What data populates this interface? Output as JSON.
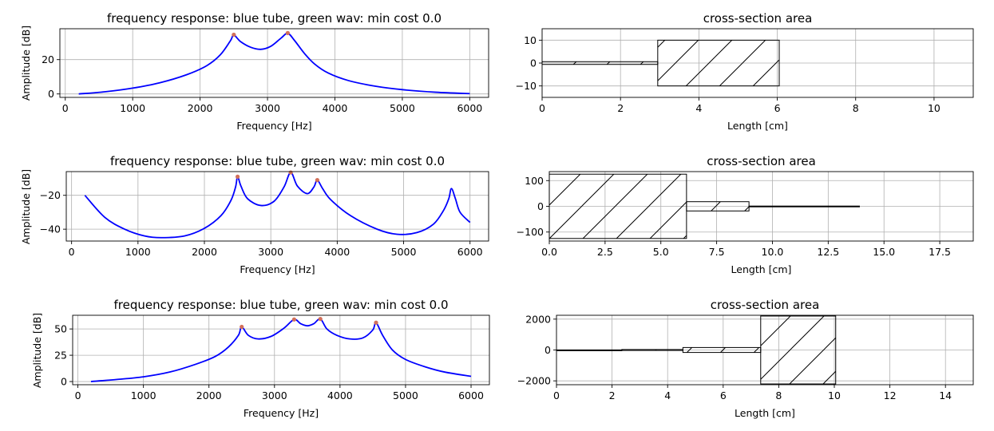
{
  "colors": {
    "curve": "#0000ff",
    "peak": "#d2705a",
    "grid": "#b0b0b0",
    "hatch": "#000000"
  },
  "chart_data": [
    {
      "type": "line",
      "title": "frequency response: blue tube, green wav: min cost 0.0",
      "xlabel": "Frequency [Hz]",
      "ylabel": "Amplitude [dB]",
      "xlim": [
        -80,
        6280
      ],
      "ylim": [
        -2,
        38
      ],
      "xticks": [
        0,
        1000,
        2000,
        3000,
        4000,
        5000,
        6000
      ],
      "yticks": [
        0,
        20
      ],
      "grid": true,
      "x": [
        200,
        600,
        1000,
        1400,
        1800,
        2100,
        2300,
        2450,
        2500,
        2600,
        2750,
        2900,
        3050,
        3200,
        3300,
        3400,
        3550,
        3700,
        3900,
        4200,
        4600,
        5000,
        5500,
        6000
      ],
      "y": [
        0,
        1.3,
        3.4,
        6.5,
        11.2,
        16.5,
        22.8,
        31,
        34.3,
        30.5,
        27.2,
        26,
        27.8,
        32.5,
        35.3,
        31.2,
        23.5,
        17.4,
        12.2,
        7.8,
        4.5,
        2.5,
        1,
        0.2
      ],
      "peaks": [
        {
          "x": 2500,
          "y": 34.5
        },
        {
          "x": 3300,
          "y": 35.5
        }
      ]
    },
    {
      "type": "area",
      "title": "cross-section area",
      "xlabel": "Length [cm]",
      "ylabel": "",
      "xlim": [
        0,
        11
      ],
      "ylim": [
        -15,
        15
      ],
      "xticks": [
        0,
        2,
        4,
        6,
        8,
        10
      ],
      "yticks": [
        -10,
        0,
        10
      ],
      "grid": true,
      "segments": [
        {
          "start": 0,
          "end": 2.95,
          "radius": 0.6
        },
        {
          "start": 2.95,
          "end": 6.05,
          "radius": 10
        }
      ]
    },
    {
      "type": "line",
      "title": "frequency response: blue tube, green wav: min cost 0.0",
      "xlabel": "Frequency [Hz]",
      "ylabel": "Amplitude [dB]",
      "xlim": [
        -80,
        6280
      ],
      "ylim": [
        -47,
        -6
      ],
      "xticks": [
        0,
        1000,
        2000,
        3000,
        4000,
        5000,
        6000
      ],
      "yticks": [
        -40,
        -20
      ],
      "grid": true,
      "x": [
        200,
        500,
        800,
        1100,
        1350,
        1700,
        2000,
        2250,
        2400,
        2470,
        2500,
        2550,
        2650,
        2850,
        3050,
        3200,
        3300,
        3400,
        3550,
        3650,
        3700,
        3780,
        3900,
        4200,
        4600,
        4900,
        5200,
        5450,
        5600,
        5680,
        5720,
        5780,
        5850,
        6000
      ],
      "y": [
        -20,
        -33,
        -40,
        -44,
        -45,
        -44,
        -39.5,
        -32,
        -23,
        -15,
        -9,
        -14.5,
        -22,
        -26,
        -23.5,
        -15,
        -6.5,
        -14.5,
        -19,
        -15,
        -11,
        -16,
        -22.5,
        -32,
        -40,
        -43,
        -42,
        -37,
        -29,
        -22,
        -16,
        -22,
        -30,
        -36
      ],
      "peaks": [
        {
          "x": 2500,
          "y": -9
        },
        {
          "x": 3300,
          "y": -6.5
        },
        {
          "x": 3700,
          "y": -11
        }
      ]
    },
    {
      "type": "area",
      "title": "cross-section area",
      "xlabel": "Length [cm]",
      "ylabel": "",
      "xlim": [
        0,
        19
      ],
      "ylim": [
        -135,
        135
      ],
      "xticks": [
        0.0,
        2.5,
        5.0,
        7.5,
        10.0,
        12.5,
        15.0,
        17.5
      ],
      "xtick_labels": [
        "0.0",
        "2.5",
        "5.0",
        "7.5",
        "10.0",
        "12.5",
        "15.0",
        "17.5"
      ],
      "yticks": [
        -100,
        0,
        100
      ],
      "grid": true,
      "segments": [
        {
          "start": 0,
          "end": 6.15,
          "radius": 125
        },
        {
          "start": 6.15,
          "end": 8.95,
          "radius": 18
        },
        {
          "start": 8.95,
          "end": 13.9,
          "radius": 1
        }
      ]
    },
    {
      "type": "line",
      "title": "frequency response: blue tube, green wav: min cost 0.0",
      "xlabel": "Frequency [Hz]",
      "ylabel": "Amplitude [dB]",
      "xlim": [
        -80,
        6280
      ],
      "ylim": [
        -3,
        63
      ],
      "xticks": [
        0,
        1000,
        2000,
        3000,
        4000,
        5000,
        6000
      ],
      "yticks": [
        0,
        25,
        50
      ],
      "grid": true,
      "x": [
        200,
        600,
        1000,
        1400,
        1800,
        2100,
        2300,
        2450,
        2500,
        2600,
        2750,
        2950,
        3150,
        3300,
        3400,
        3500,
        3600,
        3700,
        3800,
        3950,
        4150,
        4350,
        4500,
        4550,
        4650,
        4800,
        5000,
        5300,
        5600,
        6000
      ],
      "y": [
        0,
        2,
        4.5,
        9,
        16.5,
        24,
        33,
        44,
        52,
        44,
        40.5,
        43,
        51,
        59,
        55,
        53,
        55,
        59.5,
        50,
        44,
        40.5,
        41.5,
        49,
        56,
        44,
        30,
        21,
        14,
        9,
        5
      ],
      "peaks": [
        {
          "x": 2500,
          "y": 52
        },
        {
          "x": 3300,
          "y": 59
        },
        {
          "x": 3700,
          "y": 59.5
        },
        {
          "x": 4550,
          "y": 56
        }
      ]
    },
    {
      "type": "area",
      "title": "cross-section area",
      "xlabel": "Length [cm]",
      "ylabel": "",
      "xlim": [
        0,
        15
      ],
      "ylim": [
        -2250,
        2250
      ],
      "xticks": [
        0,
        2,
        4,
        6,
        8,
        10,
        12,
        14
      ],
      "yticks": [
        -2000,
        0,
        2000
      ],
      "grid": true,
      "segments": [
        {
          "start": 0,
          "end": 2.35,
          "radius": 5
        },
        {
          "start": 2.35,
          "end": 4.55,
          "radius": 30
        },
        {
          "start": 4.55,
          "end": 7.35,
          "radius": 160
        },
        {
          "start": 7.35,
          "end": 10.05,
          "radius": 2200
        }
      ]
    }
  ]
}
